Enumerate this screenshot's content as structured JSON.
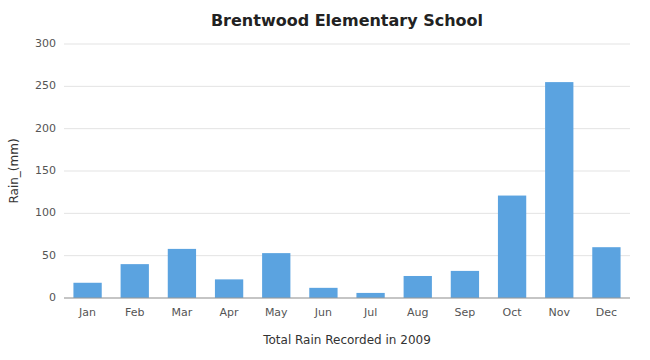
{
  "chart_data": {
    "type": "bar",
    "title": "Brentwood Elementary School",
    "xlabel": "Total Rain Recorded in 2009",
    "ylabel": "Rain_(mm)",
    "categories": [
      "Jan",
      "Feb",
      "Mar",
      "Apr",
      "May",
      "Jun",
      "Jul",
      "Aug",
      "Sep",
      "Oct",
      "Nov",
      "Dec"
    ],
    "values": [
      18,
      40,
      58,
      22,
      53,
      12,
      6,
      26,
      32,
      121,
      255,
      60
    ],
    "color": "#5BA3E0",
    "ylim": [
      0,
      300
    ],
    "yticks": [
      0,
      50,
      100,
      150,
      200,
      250,
      300
    ],
    "grid": true
  }
}
